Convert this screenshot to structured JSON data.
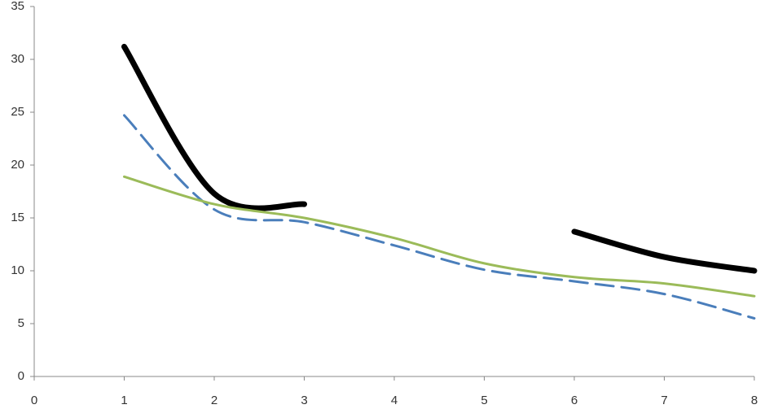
{
  "chart_data": {
    "type": "line",
    "smooth": true,
    "x": [
      1,
      2,
      3,
      4,
      5,
      6,
      7,
      8
    ],
    "series": [
      {
        "color": "#000000",
        "width": 7,
        "dashed": false,
        "values": [
          31.2,
          17.3,
          16.3,
          null,
          null,
          13.7,
          11.3,
          10.0
        ]
      },
      {
        "color": "#4a7ebb",
        "width": 3,
        "dashed": true,
        "values": [
          24.7,
          15.8,
          14.6,
          12.4,
          10.1,
          9.0,
          7.8,
          5.5
        ]
      },
      {
        "color": "#9bbb59",
        "width": 3,
        "dashed": false,
        "values": [
          18.9,
          16.3,
          15.0,
          13.1,
          10.7,
          9.4,
          8.8,
          7.6
        ]
      }
    ],
    "xlim": [
      0,
      8
    ],
    "xticks": [
      0,
      1,
      2,
      3,
      4,
      5,
      6,
      7,
      8
    ],
    "ylim": [
      0,
      35
    ],
    "yticks": [
      0,
      5,
      10,
      15,
      20,
      25,
      30,
      35
    ],
    "grid": false
  }
}
